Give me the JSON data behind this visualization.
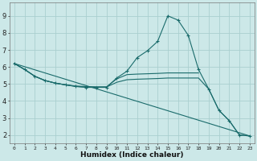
{
  "xlabel": "Humidex (Indice chaleur)",
  "bg_color": "#cce8e8",
  "grid_color": "#aacfcf",
  "line_color": "#1a6b6b",
  "xlim": [
    -0.5,
    23.5
  ],
  "ylim": [
    1.5,
    9.8
  ],
  "yticks": [
    2,
    3,
    4,
    5,
    6,
    7,
    8,
    9
  ],
  "xticks": [
    0,
    1,
    2,
    3,
    4,
    5,
    6,
    7,
    8,
    9,
    10,
    11,
    12,
    13,
    14,
    15,
    16,
    17,
    18,
    19,
    20,
    21,
    22,
    23
  ],
  "lines": [
    {
      "x": [
        0,
        1,
        2,
        3,
        4,
        5,
        6,
        7,
        8,
        9,
        10,
        11,
        12,
        13,
        14,
        15,
        16,
        17,
        18,
        19,
        20,
        21,
        22,
        23
      ],
      "y": [
        6.2,
        5.85,
        5.45,
        5.2,
        5.05,
        4.95,
        4.85,
        4.8,
        4.8,
        4.8,
        5.35,
        5.75,
        6.55,
        6.95,
        7.5,
        9.0,
        8.75,
        7.85,
        5.85,
        4.7,
        3.45,
        2.85,
        2.0,
        1.95
      ],
      "marker": true
    },
    {
      "x": [
        0,
        1,
        2,
        3,
        4,
        5,
        6,
        7,
        8,
        9,
        10,
        11,
        12,
        13,
        14,
        15,
        16,
        17,
        18
      ],
      "y": [
        6.2,
        5.85,
        5.45,
        5.2,
        5.05,
        4.95,
        4.88,
        4.85,
        4.83,
        4.83,
        5.3,
        5.55,
        5.58,
        5.6,
        5.62,
        5.65,
        5.65,
        5.65,
        5.65
      ],
      "marker": false
    },
    {
      "x": [
        0,
        1,
        2,
        3,
        4,
        5,
        6,
        7,
        8,
        9,
        10,
        11,
        12,
        13,
        14,
        15,
        16,
        17,
        18,
        19,
        20,
        21,
        22,
        23
      ],
      "y": [
        6.2,
        5.85,
        5.45,
        5.2,
        5.05,
        4.95,
        4.86,
        4.82,
        4.82,
        4.82,
        5.1,
        5.25,
        5.28,
        5.3,
        5.32,
        5.35,
        5.35,
        5.35,
        5.35,
        4.7,
        3.45,
        2.85,
        2.0,
        1.95
      ],
      "marker": false
    },
    {
      "x": [
        0,
        23
      ],
      "y": [
        6.2,
        1.95
      ],
      "marker": false
    }
  ]
}
